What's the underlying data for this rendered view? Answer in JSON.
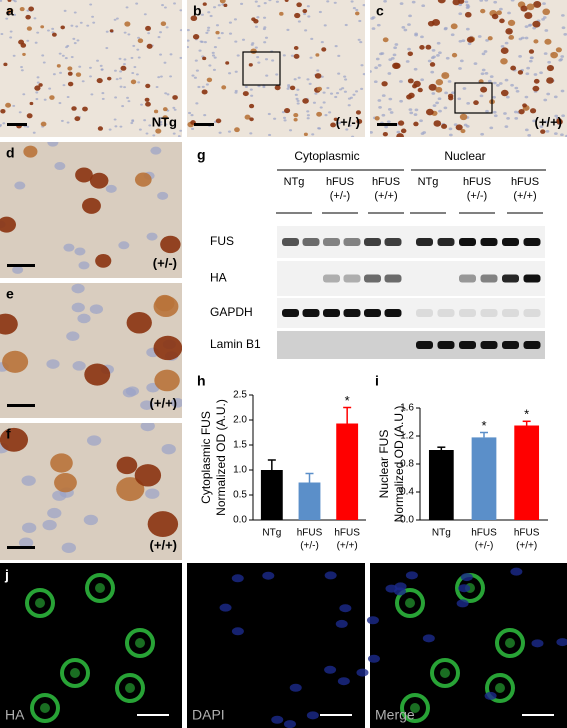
{
  "panels": [
    {
      "label": "a",
      "tag": "NTg"
    },
    {
      "label": "b",
      "tag": "(+/-)"
    },
    {
      "label": "c",
      "tag": "(+/+)"
    },
    {
      "label": "d",
      "tag": "(+/-)"
    },
    {
      "label": "e",
      "tag": "(+/+)"
    },
    {
      "label": "f",
      "tag": "(+/+)"
    }
  ],
  "blot": {
    "label": "g",
    "groups": [
      "Cytoplasmic",
      "Nuclear"
    ],
    "columns": [
      [
        "NTg"
      ],
      [
        "hFUS",
        "(+/-)"
      ],
      [
        "hFUS",
        "(+/+)"
      ],
      [
        "NTg"
      ],
      [
        "hFUS",
        "(+/-)"
      ],
      [
        "hFUS",
        "(+/+)"
      ]
    ],
    "rows": [
      "FUS",
      "HA",
      "GAPDH",
      "Lamin B1"
    ]
  },
  "chart_data": [
    {
      "type": "bar",
      "label": "h",
      "ylabel": [
        "Cytoplasmic FUS",
        "Normalized OD (A.U.)"
      ],
      "categories": [
        [
          "NTg"
        ],
        [
          "hFUS",
          "(+/-)"
        ],
        [
          "hFUS",
          "(+/+)"
        ]
      ],
      "values": [
        1.0,
        0.75,
        1.93
      ],
      "errors": [
        0.2,
        0.18,
        0.32
      ],
      "colors": [
        "#000000",
        "#5b8fc9",
        "#ff0000"
      ],
      "significance": [
        null,
        null,
        "*"
      ],
      "ylim": [
        0,
        2.5
      ],
      "yticks": [
        {
          "value": 0,
          "label": "0.0"
        },
        0.5,
        {
          "value": 1,
          "label": "1.0"
        },
        1.5,
        {
          "value": 2,
          "label": "2.0"
        },
        2.5
      ]
    },
    {
      "type": "bar",
      "label": "i",
      "ylabel": [
        "Nuclear FUS",
        "Normalized OD (A.U.)"
      ],
      "categories": [
        [
          "NTg"
        ],
        [
          "hFUS",
          "(+/-)"
        ],
        [
          "hFUS",
          "(+/+)"
        ]
      ],
      "values": [
        1.0,
        1.18,
        1.35
      ],
      "errors": [
        0.04,
        0.07,
        0.06
      ],
      "colors": [
        "#000000",
        "#5b8fc9",
        "#ff0000"
      ],
      "significance": [
        null,
        "*",
        "*"
      ],
      "ylim": [
        0,
        1.6
      ],
      "yticks": [
        {
          "value": 0,
          "label": "0.0"
        },
        0.4,
        0.8,
        1.2,
        1.6
      ]
    }
  ],
  "fluorescence": {
    "label": "j",
    "channels": [
      "HA",
      "DAPI",
      "Merge"
    ]
  }
}
